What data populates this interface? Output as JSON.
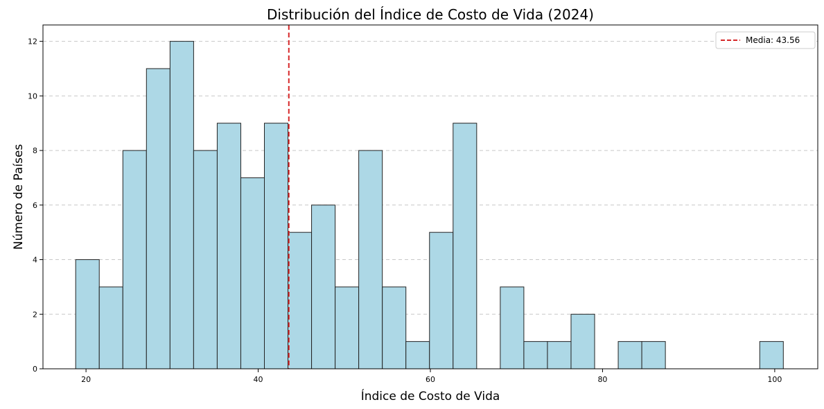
{
  "chart_data": {
    "type": "bar",
    "subtype": "histogram",
    "title": "Distribución del Índice de Costo de Vida (2024)",
    "xlabel": "Índice de Costo de Vida",
    "ylabel": "Número de Países",
    "xlim": [
      15,
      105
    ],
    "ylim": [
      0,
      12.6
    ],
    "x_ticks": [
      20,
      40,
      60,
      80,
      100
    ],
    "y_ticks": [
      0,
      2,
      4,
      6,
      8,
      10,
      12
    ],
    "grid": "y-dashed",
    "bin_start": 18.8,
    "bin_width": 2.74,
    "counts": [
      4,
      3,
      8,
      11,
      12,
      8,
      9,
      7,
      9,
      5,
      6,
      3,
      8,
      3,
      1,
      5,
      9,
      0,
      3,
      1,
      1,
      2,
      0,
      1,
      1,
      0,
      0,
      0,
      0,
      1
    ],
    "bar_color": "#add8e6",
    "bar_edge_color": "#222222",
    "mean": {
      "value": 43.56,
      "label": "Media: 43.56",
      "color": "#d62728",
      "linestyle": "dashed"
    },
    "legend": {
      "position": "top-right",
      "entries": [
        "Media: 43.56"
      ]
    }
  }
}
